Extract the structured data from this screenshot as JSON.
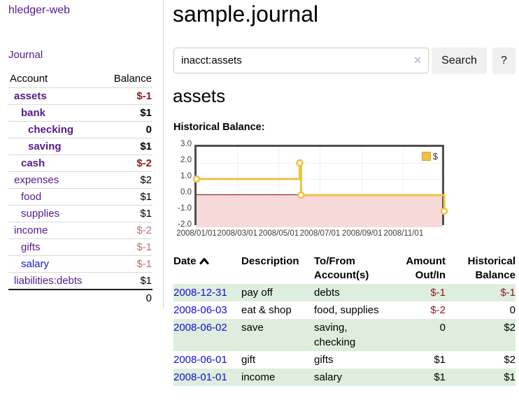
{
  "app_title": "hledger-web",
  "sidebar": {
    "journal_link": "Journal",
    "accounts_table": {
      "account_header": "Account",
      "balance_header": "Balance",
      "rows": [
        {
          "name": "assets",
          "balance": "$-1"
        },
        {
          "name": "bank",
          "balance": "$1"
        },
        {
          "name": "checking",
          "balance": "0"
        },
        {
          "name": "saving",
          "balance": "$1"
        },
        {
          "name": "cash",
          "balance": "$-2"
        },
        {
          "name": "expenses",
          "balance": "$2"
        },
        {
          "name": "food",
          "balance": "$1"
        },
        {
          "name": "supplies",
          "balance": "$1"
        },
        {
          "name": "income",
          "balance": "$-2"
        },
        {
          "name": "gifts",
          "balance": "$-1"
        },
        {
          "name": "salary",
          "balance": "$-1"
        },
        {
          "name": "liabilities:debts",
          "balance": "$1"
        }
      ],
      "total": "0"
    }
  },
  "main": {
    "title": "sample.journal",
    "search": {
      "value": "inacct:assets",
      "clear_icon": "✕",
      "search_button": "Search",
      "help_button": "?"
    },
    "account_heading": "assets",
    "chart_heading": "Historical Balance:"
  },
  "chart_data": {
    "type": "line",
    "step": true,
    "title": "Historical Balance:",
    "series": [
      {
        "name": "$",
        "color": "#edc240",
        "points": [
          {
            "x": "2008-01-01",
            "day": 0,
            "y": 1
          },
          {
            "x": "2008-06-01",
            "day": 152,
            "y": 2
          },
          {
            "x": "2008-06-03",
            "day": 154,
            "y": 0
          },
          {
            "x": "2008-12-31",
            "day": 365,
            "y": -1
          }
        ]
      }
    ],
    "ylim": [
      -2,
      3
    ],
    "yticks": [
      {
        "label": "3.0",
        "value": 3
      },
      {
        "label": "2.0",
        "value": 2
      },
      {
        "label": "1.0",
        "value": 1
      },
      {
        "label": "0.0",
        "value": 0
      },
      {
        "label": "-1.0",
        "value": -1
      },
      {
        "label": "-2.0",
        "value": -2
      }
    ],
    "xticks": [
      {
        "label": "2008/01/01",
        "day": 0
      },
      {
        "label": "2008/03/01",
        "day": 60
      },
      {
        "label": "2008/05/01",
        "day": 121
      },
      {
        "label": "2008/07/01",
        "day": 182
      },
      {
        "label": "2008/09/01",
        "day": 244
      },
      {
        "label": "2008/11/01",
        "day": 305
      },
      {
        "label": "",
        "day": 360
      }
    ],
    "xdomain_days": [
      0,
      368
    ],
    "legend": {
      "label": "$",
      "position": "top-right"
    },
    "grid": true,
    "negative_zone_color": "#f8d9d9",
    "zero_line_color": "#8b0000"
  },
  "register": {
    "headers": {
      "date": "Date",
      "description": "Description",
      "accounts": "To/From\nAccount(s)",
      "amount": "Amount\nOut/In",
      "balance": "Historical\nBalance"
    },
    "rows": [
      {
        "date": "2008-12-31",
        "description": "pay off",
        "accounts": "debts",
        "amount": "$-1",
        "balance": "$-1"
      },
      {
        "date": "2008-06-03",
        "description": "eat & shop",
        "accounts": "food, supplies",
        "amount": "$-2",
        "balance": "0"
      },
      {
        "date": "2008-06-02",
        "description": "save",
        "accounts": "saving,\nchecking",
        "amount": "0",
        "balance": "$2"
      },
      {
        "date": "2008-06-01",
        "description": "gift",
        "accounts": "gifts",
        "amount": "$1",
        "balance": "$2"
      },
      {
        "date": "2008-01-01",
        "description": "income",
        "accounts": "salary",
        "amount": "$1",
        "balance": "$1"
      }
    ]
  },
  "colors": {
    "link_purple": "#551a8b",
    "link_blue": "#1414dd",
    "negative_dark_red": "#8b1a1a",
    "negative_faded_red": "#bd7171",
    "row_green": "#deeede",
    "series_gold": "#edc240",
    "negative_zone_pink": "#f8d9d9",
    "zero_line_red": "#8b0000"
  }
}
